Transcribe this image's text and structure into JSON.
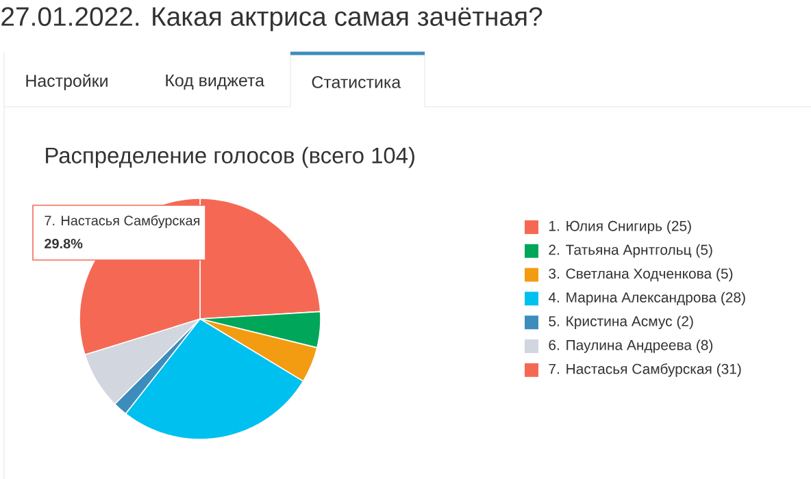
{
  "chart_data": {
    "type": "pie",
    "title": "27.01.2022. Какая актриса самая зачётная?",
    "subtitle": "Распределение голосов (всего 104)",
    "categories": [
      "1. Юлия Снигирь (25)",
      "2. Татьяна Арнтгольц (5)",
      "3. Светлана Ходченкова (5)",
      "4. Марина Александрова (28)",
      "5. Кристина Асмус (2)",
      "6. Паулина Андреева (8)",
      "7. Настасья Самбурская (31)"
    ],
    "values": [
      25,
      5,
      5,
      28,
      2,
      8,
      31
    ],
    "colors": [
      "#f56954",
      "#00a65a",
      "#f39c12",
      "#00c0ef",
      "#3c8dbc",
      "#d2d6de",
      "#f56954"
    ],
    "legend": "right",
    "annotations": [
      "Настройки",
      "Код виджета",
      "Статистика",
      "7. Настасья Самбурская",
      "**29.8%**"
    ]
  }
}
